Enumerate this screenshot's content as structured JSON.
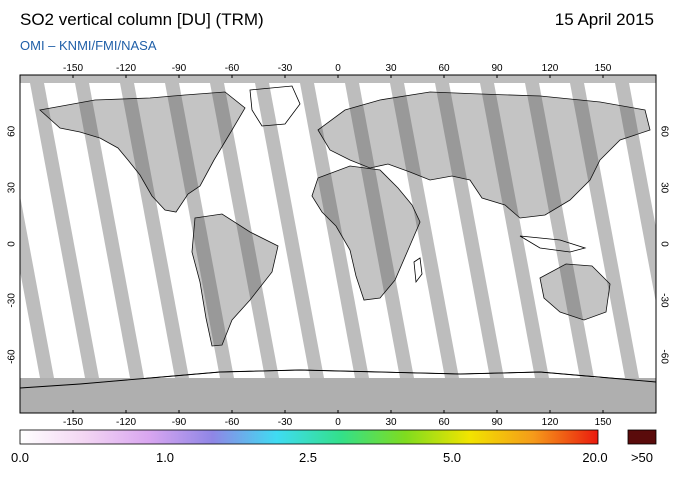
{
  "header": {
    "title": "SO2 vertical column [DU] (TRM)",
    "date": "15 April 2015",
    "credit": "OMI  –  KNMI/FMI/NASA"
  },
  "map": {
    "lon_ticks": [
      "-150",
      "-120",
      "-90",
      "-60",
      "-30",
      "0",
      "30",
      "60",
      "90",
      "120",
      "150"
    ],
    "lat_ticks": [
      "60",
      "30",
      "0",
      "-30",
      "-60"
    ],
    "land_color": "#555555",
    "gap_color": "#bdbdbd",
    "polar_color": "#a6a6a6"
  },
  "colorbar": {
    "labels": [
      "0.0",
      "1.0",
      "2.5",
      "5.0",
      "20.0",
      ">50"
    ],
    "stops": [
      "#ffffff",
      "#f3d6f3",
      "#d9a6f0",
      "#8f86e6",
      "#3fdcf2",
      "#33e08a",
      "#7fdc1f",
      "#f2e400",
      "#f59a1a",
      "#ea1a0e"
    ],
    "overflow_color": "#5a0b0b"
  }
}
